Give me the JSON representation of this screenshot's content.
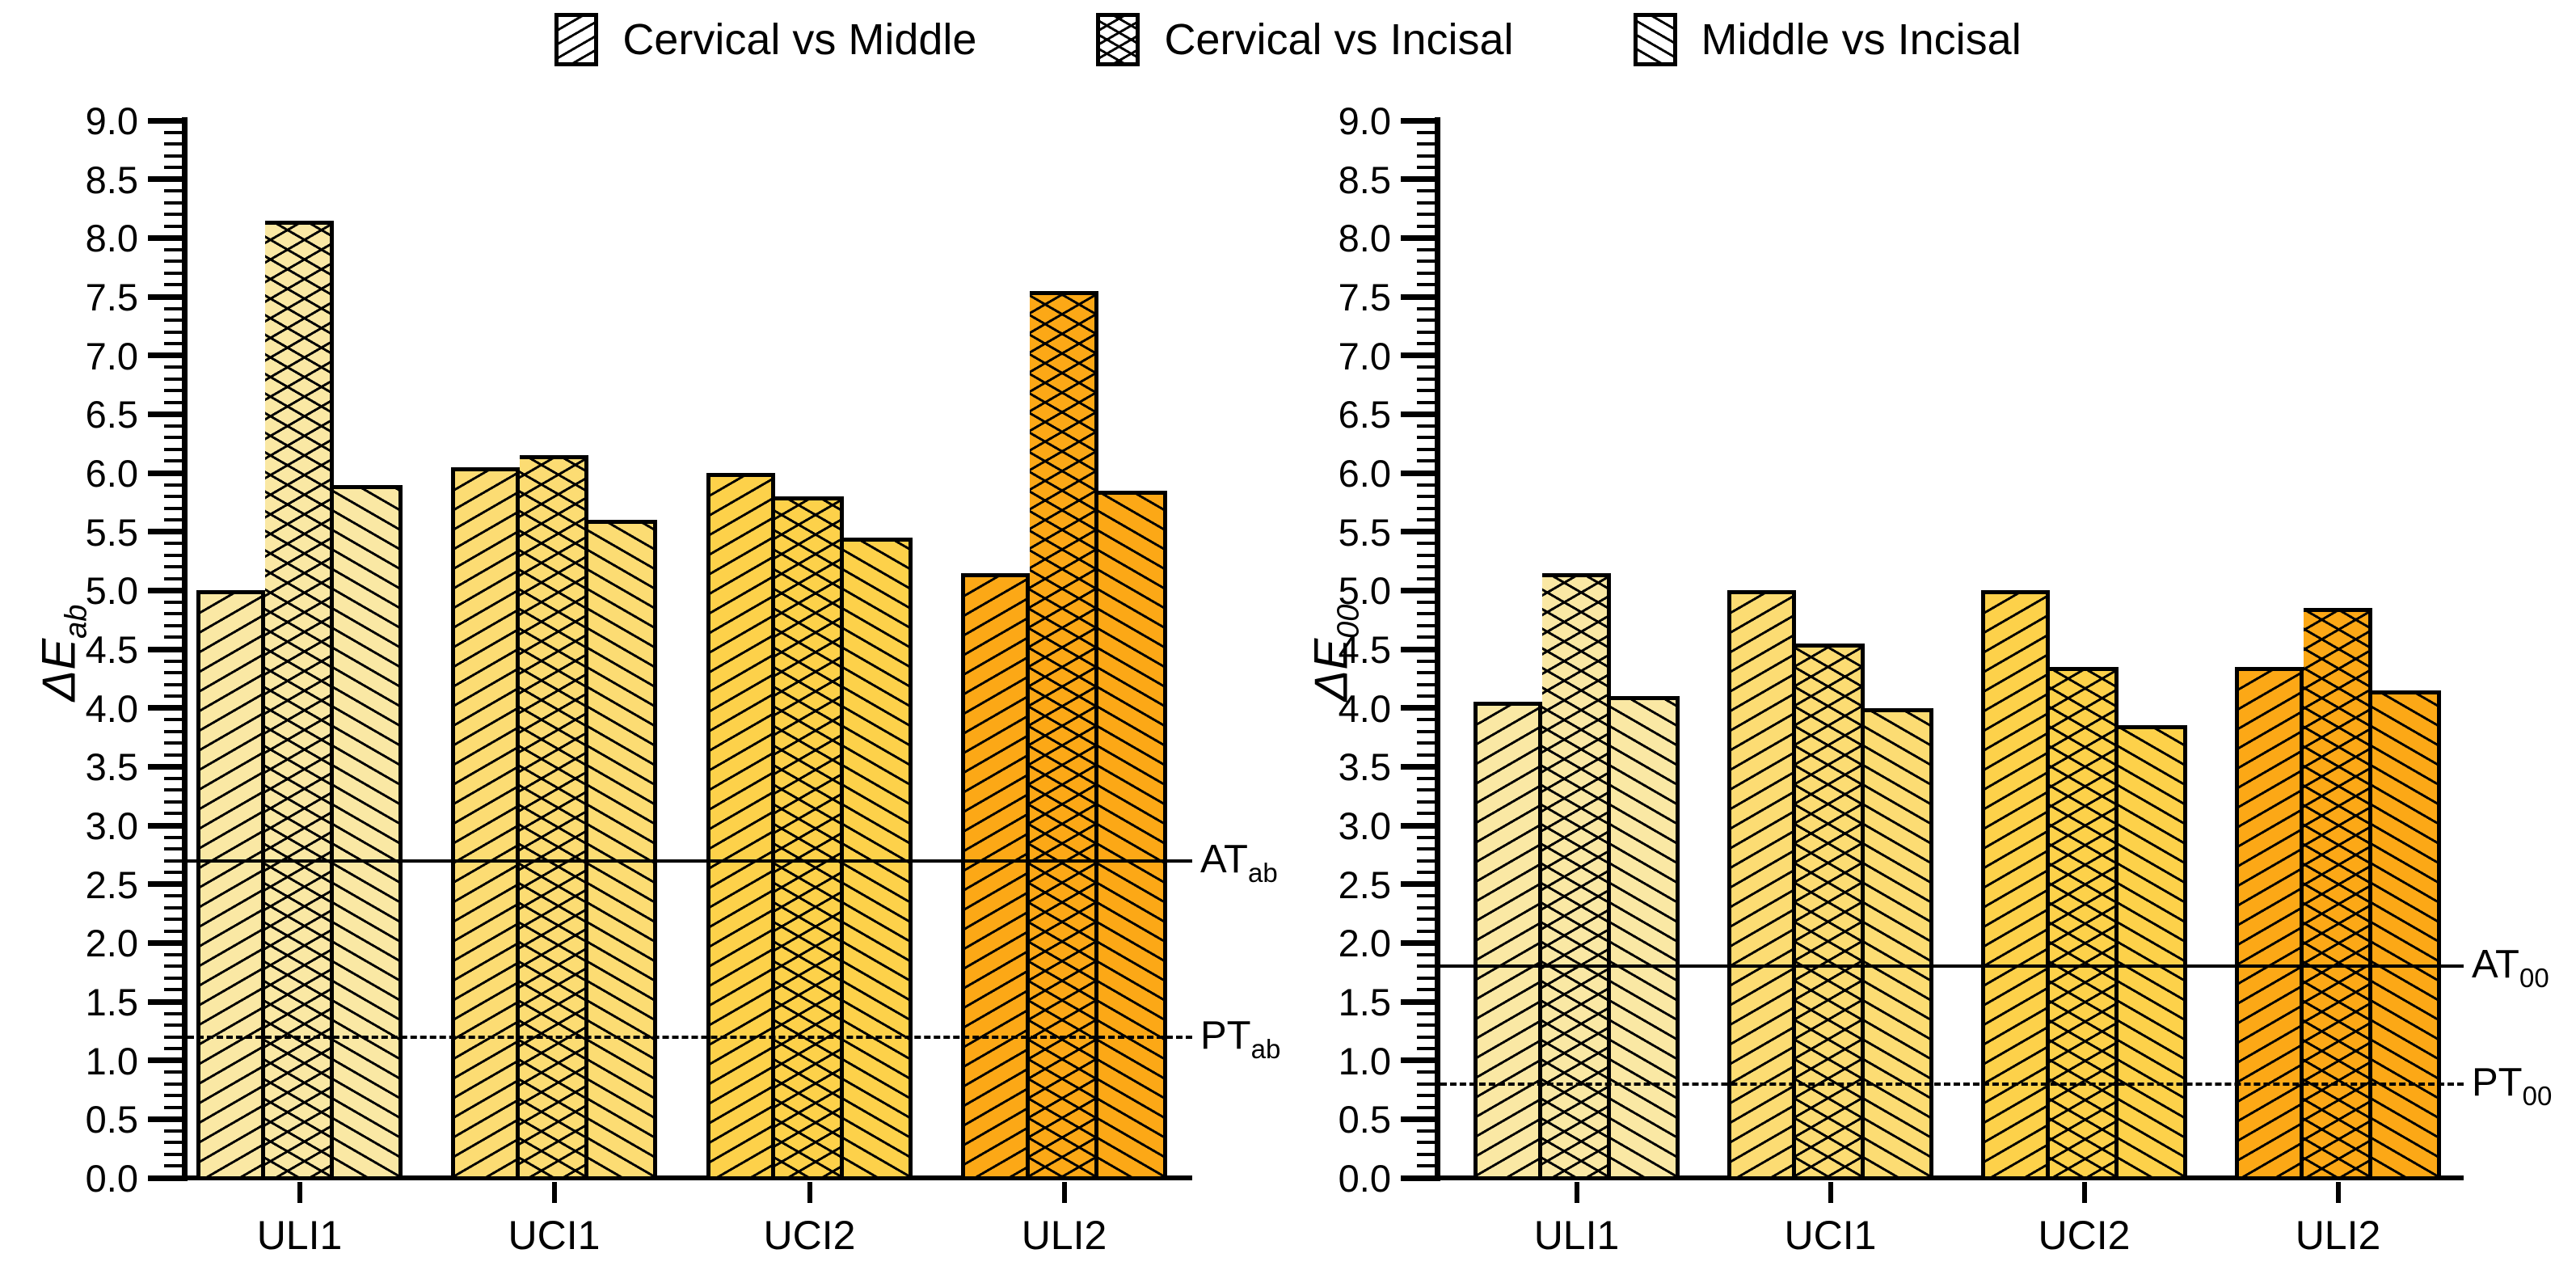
{
  "legend": {
    "items": [
      {
        "label": "Cervical vs Middle",
        "pattern": "diagonal-up-hatch"
      },
      {
        "label": "Cervical vs Incisal",
        "pattern": "crosshatch"
      },
      {
        "label": "Middle vs Incisal",
        "pattern": "diagonal-down-hatch"
      }
    ]
  },
  "colors": {
    "group_fills": [
      "#FAE8A4",
      "#FCDC73",
      "#FDD14A",
      "#FCA816"
    ],
    "hatch": "#000000",
    "background": "#FFFFFF"
  },
  "chart_data": [
    {
      "type": "bar",
      "panel": "left",
      "ylabel_main": "ΔE",
      "ylabel_sub": "ab",
      "categories": [
        "ULI1",
        "UCI1",
        "UCI2",
        "ULI2"
      ],
      "series": [
        {
          "name": "Cervical vs Middle",
          "pattern": "diagonal-up-hatch",
          "values": [
            5.0,
            6.05,
            6.0,
            5.15
          ]
        },
        {
          "name": "Cervical vs Incisal",
          "pattern": "crosshatch",
          "values": [
            8.15,
            6.15,
            5.8,
            7.55
          ]
        },
        {
          "name": "Middle vs Incisal",
          "pattern": "diagonal-down-hatch",
          "values": [
            5.9,
            5.6,
            5.45,
            5.85
          ]
        }
      ],
      "thresholds": [
        {
          "name": "AT",
          "sub": "ab",
          "value": 2.7,
          "line": "solid"
        },
        {
          "name": "PT",
          "sub": "ab",
          "value": 1.2,
          "line": "dashed"
        }
      ],
      "ylim": [
        0,
        9
      ],
      "ytick_major_step": 0.5,
      "ytick_minor_step": 0.1,
      "ytick_labels": [
        "0.0",
        "0.5",
        "1.0",
        "1.5",
        "2.0",
        "2.5",
        "3.0",
        "3.5",
        "4.0",
        "4.5",
        "5.0",
        "5.5",
        "6.0",
        "6.5",
        "7.0",
        "7.5",
        "8.0",
        "8.5",
        "9.0"
      ],
      "grid": false,
      "legend_position": "top"
    },
    {
      "type": "bar",
      "panel": "right",
      "ylabel_main": "ΔE",
      "ylabel_sub": "00",
      "categories": [
        "ULI1",
        "UCI1",
        "UCI2",
        "ULI2"
      ],
      "series": [
        {
          "name": "Cervical vs Middle",
          "pattern": "diagonal-up-hatch",
          "values": [
            4.05,
            5.0,
            5.0,
            4.35
          ]
        },
        {
          "name": "Cervical vs Incisal",
          "pattern": "crosshatch",
          "values": [
            5.15,
            4.55,
            4.35,
            4.85
          ]
        },
        {
          "name": "Middle vs Incisal",
          "pattern": "diagonal-down-hatch",
          "values": [
            4.1,
            4.0,
            3.85,
            4.15
          ]
        }
      ],
      "thresholds": [
        {
          "name": "AT",
          "sub": "00",
          "value": 1.8,
          "line": "solid"
        },
        {
          "name": "PT",
          "sub": "00",
          "value": 0.8,
          "line": "dashed"
        }
      ],
      "ylim": [
        0,
        9
      ],
      "ytick_major_step": 0.5,
      "ytick_minor_step": 0.1,
      "ytick_labels": [
        "0.0",
        "0.5",
        "1.0",
        "1.5",
        "2.0",
        "2.5",
        "3.0",
        "3.5",
        "4.0",
        "4.5",
        "5.0",
        "5.5",
        "6.0",
        "6.5",
        "7.0",
        "7.5",
        "8.0",
        "8.5",
        "9.0"
      ],
      "grid": false,
      "legend_position": "top"
    }
  ]
}
